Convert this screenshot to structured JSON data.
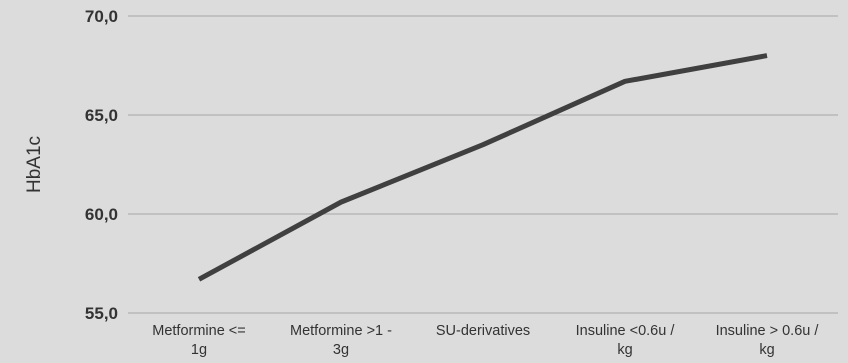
{
  "chart_data": {
    "type": "line",
    "title": "",
    "xlabel": "",
    "ylabel": "HbA1c",
    "categories": [
      [
        "Metformine <=",
        "1g"
      ],
      [
        "Metformine >1 -",
        "3g"
      ],
      [
        "SU-derivatives"
      ],
      [
        "Insuline <0.6u /",
        "kg"
      ],
      [
        "Insuline > 0.6u /",
        "kg"
      ]
    ],
    "series": [
      {
        "values": [
          56.7,
          60.6,
          63.5,
          66.7,
          68.0
        ]
      }
    ],
    "ylim": [
      55,
      70
    ],
    "yticks": [
      55,
      60,
      65,
      70
    ],
    "ytick_labels": [
      "55,0",
      "60,0",
      "65,0",
      "70,0"
    ],
    "grid": "horizontal",
    "legend": "none",
    "colors": {
      "line": "#404040",
      "grid": "#a6a6a6",
      "text": "#333333",
      "background": "#dcdcdc"
    }
  }
}
